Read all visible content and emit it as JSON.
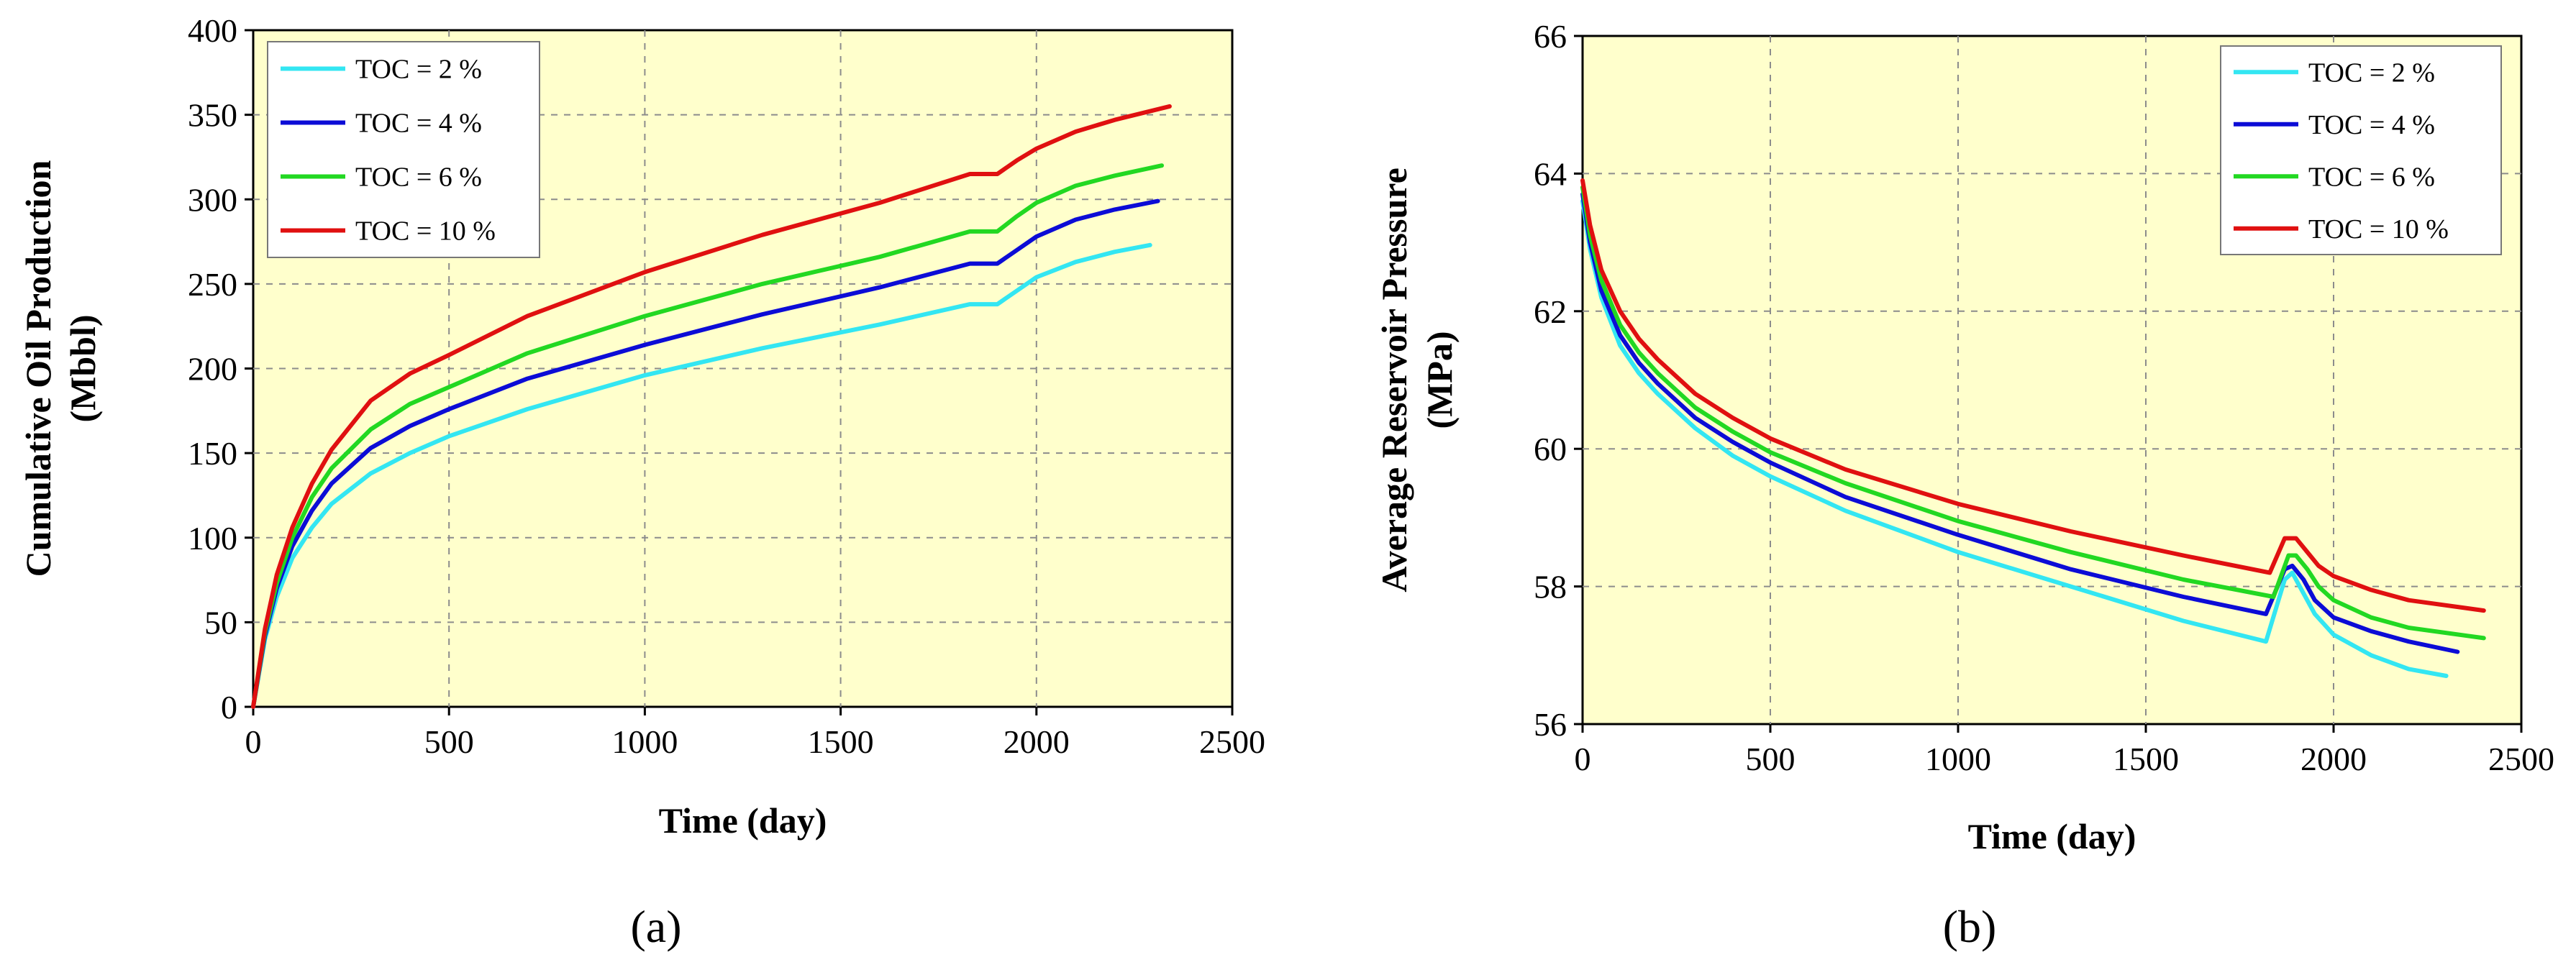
{
  "figure": {
    "panel_labels": [
      "(a)",
      "(b)"
    ]
  },
  "chart_data": [
    {
      "type": "line",
      "panel": "(a)",
      "title": "",
      "xlabel": "Time (day)",
      "ylabel_lines": [
        "Cumulative Oil Production",
        "(Mbbl)"
      ],
      "xlim": [
        0,
        2500
      ],
      "ylim": [
        0,
        400
      ],
      "xticks": [
        0,
        500,
        1000,
        1500,
        2000,
        2500
      ],
      "yticks": [
        0,
        50,
        100,
        150,
        200,
        250,
        300,
        350,
        400
      ],
      "grid": true,
      "legend_position": "top-left",
      "series": [
        {
          "name": "TOC = 2 %",
          "color": "#33e6f2",
          "x": [
            0,
            30,
            60,
            100,
            150,
            200,
            300,
            400,
            500,
            700,
            1000,
            1300,
            1600,
            1830,
            1900,
            1950,
            2000,
            2100,
            2200,
            2290
          ],
          "y": [
            0,
            40,
            65,
            88,
            106,
            120,
            138,
            150,
            160,
            176,
            196,
            212,
            226,
            238,
            238,
            246,
            254,
            263,
            269,
            273
          ]
        },
        {
          "name": "TOC = 4 %",
          "color": "#0c0cd6",
          "x": [
            0,
            30,
            60,
            100,
            150,
            200,
            300,
            400,
            500,
            700,
            1000,
            1300,
            1600,
            1830,
            1900,
            1950,
            2000,
            2100,
            2200,
            2310
          ],
          "y": [
            0,
            42,
            70,
            95,
            116,
            132,
            153,
            166,
            176,
            194,
            214,
            232,
            248,
            262,
            262,
            270,
            278,
            288,
            294,
            299
          ]
        },
        {
          "name": "TOC = 6 %",
          "color": "#22d822",
          "x": [
            0,
            30,
            60,
            100,
            150,
            200,
            300,
            400,
            500,
            700,
            1000,
            1300,
            1600,
            1830,
            1900,
            1950,
            2000,
            2100,
            2200,
            2320
          ],
          "y": [
            0,
            44,
            73,
            100,
            124,
            141,
            164,
            179,
            189,
            209,
            231,
            250,
            266,
            281,
            281,
            290,
            298,
            308,
            314,
            320
          ]
        },
        {
          "name": "TOC = 10 %",
          "color": "#e01010",
          "x": [
            0,
            30,
            60,
            100,
            150,
            200,
            300,
            400,
            500,
            700,
            1000,
            1300,
            1600,
            1830,
            1900,
            1950,
            2000,
            2100,
            2200,
            2340
          ],
          "y": [
            0,
            46,
            78,
            106,
            132,
            152,
            181,
            197,
            208,
            231,
            257,
            279,
            298,
            315,
            315,
            323,
            330,
            340,
            347,
            355
          ]
        }
      ]
    },
    {
      "type": "line",
      "panel": "(b)",
      "title": "",
      "xlabel": "Time (day)",
      "ylabel_lines": [
        "Average Reservoir Pressure",
        "(MPa)"
      ],
      "xlim": [
        0,
        2500
      ],
      "ylim": [
        56,
        66
      ],
      "xticks": [
        0,
        500,
        1000,
        1500,
        2000,
        2500
      ],
      "yticks": [
        56,
        58,
        60,
        62,
        64,
        66
      ],
      "grid": true,
      "legend_position": "top-right",
      "series": [
        {
          "name": "TOC = 2 %",
          "color": "#33e6f2",
          "x": [
            0,
            20,
            50,
            100,
            150,
            200,
            300,
            400,
            500,
            700,
            1000,
            1300,
            1600,
            1820,
            1870,
            1890,
            1920,
            1950,
            2000,
            2100,
            2200,
            2300
          ],
          "y": [
            63.6,
            62.9,
            62.2,
            61.5,
            61.1,
            60.8,
            60.3,
            59.9,
            59.6,
            59.1,
            58.5,
            58.0,
            57.5,
            57.2,
            58.1,
            58.2,
            57.9,
            57.6,
            57.3,
            57.0,
            56.8,
            56.7
          ]
        },
        {
          "name": "TOC = 4 %",
          "color": "#0c0cd6",
          "x": [
            0,
            20,
            50,
            100,
            150,
            200,
            300,
            400,
            500,
            700,
            1000,
            1300,
            1600,
            1820,
            1870,
            1890,
            1920,
            1950,
            2000,
            2100,
            2200,
            2330
          ],
          "y": [
            63.7,
            63.0,
            62.3,
            61.65,
            61.25,
            60.95,
            60.45,
            60.1,
            59.8,
            59.3,
            58.75,
            58.25,
            57.85,
            57.6,
            58.25,
            58.3,
            58.1,
            57.8,
            57.55,
            57.35,
            57.2,
            57.05
          ]
        },
        {
          "name": "TOC = 6 %",
          "color": "#22d822",
          "x": [
            0,
            20,
            50,
            100,
            150,
            200,
            300,
            400,
            500,
            700,
            1000,
            1300,
            1600,
            1840,
            1880,
            1900,
            1930,
            1960,
            2000,
            2100,
            2200,
            2400
          ],
          "y": [
            63.8,
            63.1,
            62.45,
            61.8,
            61.4,
            61.1,
            60.6,
            60.25,
            59.95,
            59.5,
            58.95,
            58.5,
            58.1,
            57.85,
            58.45,
            58.45,
            58.25,
            58.0,
            57.8,
            57.55,
            57.4,
            57.25
          ]
        },
        {
          "name": "TOC = 10 %",
          "color": "#e01010",
          "x": [
            0,
            20,
            50,
            100,
            150,
            200,
            300,
            400,
            500,
            700,
            1000,
            1300,
            1600,
            1830,
            1870,
            1900,
            1930,
            1960,
            2000,
            2100,
            2200,
            2400
          ],
          "y": [
            63.9,
            63.25,
            62.6,
            62.0,
            61.6,
            61.3,
            60.8,
            60.45,
            60.15,
            59.7,
            59.2,
            58.8,
            58.45,
            58.2,
            58.7,
            58.7,
            58.5,
            58.3,
            58.15,
            57.95,
            57.8,
            57.65
          ]
        }
      ]
    }
  ]
}
